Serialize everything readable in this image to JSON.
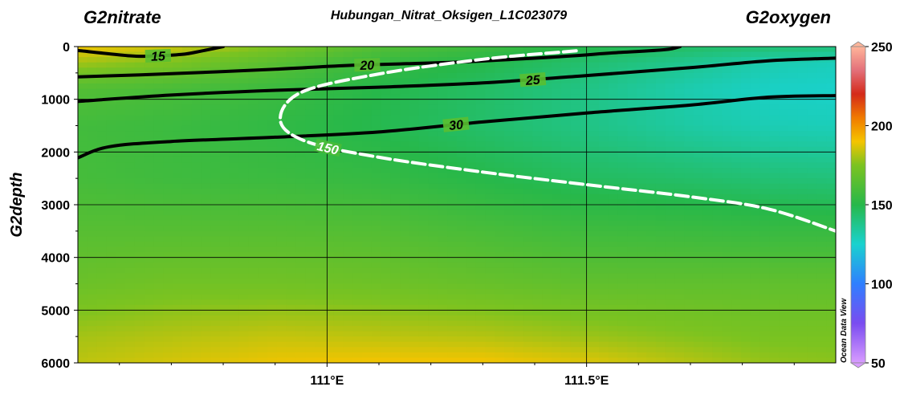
{
  "chart_data": {
    "type": "heatmap",
    "title": "Hubungan_Nitrat_Oksigen_L1C023079",
    "left_label": "G2nitrate",
    "right_label": "G2oxygen",
    "xlabel": "",
    "ylabel": "G2depth",
    "xlim": [
      110.52,
      111.98
    ],
    "ylim": [
      6000,
      0
    ],
    "x_ticks": [
      {
        "value": 111.0,
        "label": "111°E"
      },
      {
        "value": 111.5,
        "label": "111.5°E"
      }
    ],
    "y_ticks": [
      {
        "value": 0,
        "label": "0"
      },
      {
        "value": 1000,
        "label": "1000"
      },
      {
        "value": 2000,
        "label": "2000"
      },
      {
        "value": 3000,
        "label": "3000"
      },
      {
        "value": 4000,
        "label": "4000"
      },
      {
        "value": 5000,
        "label": "5000"
      },
      {
        "value": 6000,
        "label": "6000"
      }
    ],
    "grid": true,
    "colorbar": {
      "variable": "G2oxygen",
      "range": [
        50,
        250
      ],
      "ticks": [
        {
          "value": 250,
          "label": "250"
        },
        {
          "value": 200,
          "label": "200"
        },
        {
          "value": 150,
          "label": "150"
        },
        {
          "value": 100,
          "label": "100"
        },
        {
          "value": 50,
          "label": "50"
        }
      ],
      "stops": [
        {
          "value": 50,
          "color": "#d89cff"
        },
        {
          "value": 75,
          "color": "#7a4cf0"
        },
        {
          "value": 100,
          "color": "#2f7fff"
        },
        {
          "value": 125,
          "color": "#19d2cf"
        },
        {
          "value": 150,
          "color": "#27b84a"
        },
        {
          "value": 175,
          "color": "#7cc320"
        },
        {
          "value": 190,
          "color": "#f5c400"
        },
        {
          "value": 205,
          "color": "#f07a00"
        },
        {
          "value": 220,
          "color": "#d42a1a"
        },
        {
          "value": 235,
          "color": "#e3707a"
        },
        {
          "value": 250,
          "color": "#ffb59a"
        }
      ]
    },
    "oxygen_field": {
      "x": [
        110.52,
        110.7,
        110.9,
        111.1,
        111.3,
        111.5,
        111.7,
        111.85,
        111.98
      ],
      "depth": [
        0,
        300,
        800,
        1500,
        2500,
        3500,
        4500,
        5500,
        6000
      ],
      "values": [
        [
          190,
          185,
          175,
          163,
          157,
          150,
          145,
          143,
          141
        ],
        [
          180,
          175,
          165,
          155,
          150,
          143,
          137,
          131,
          129
        ],
        [
          163,
          160,
          156,
          150,
          145,
          139,
          131,
          127,
          126
        ],
        [
          158,
          156,
          153,
          149,
          144,
          139,
          133,
          130,
          129
        ],
        [
          159,
          157,
          156,
          154,
          150,
          146,
          144,
          142,
          141
        ],
        [
          164,
          164,
          164,
          163,
          160,
          157,
          156,
          155,
          155
        ],
        [
          170,
          172,
          172,
          171,
          169,
          167,
          167,
          167,
          167
        ],
        [
          180,
          182,
          184,
          183,
          182,
          179,
          176,
          174,
          174
        ],
        [
          183,
          186,
          189,
          190,
          190,
          187,
          182,
          178,
          177
        ]
      ]
    },
    "nitrate_contours": [
      {
        "label": "15",
        "points": [
          [
            110.52,
            75
          ],
          [
            110.62,
            175
          ],
          [
            110.66,
            180
          ],
          [
            110.72,
            150
          ],
          [
            110.76,
            80
          ],
          [
            110.8,
            0
          ]
        ]
      },
      {
        "label": "20",
        "points": [
          [
            110.52,
            575
          ],
          [
            110.7,
            515
          ],
          [
            110.9,
            430
          ],
          [
            111.05,
            355
          ],
          [
            111.25,
            295
          ],
          [
            111.45,
            190
          ],
          [
            111.55,
            120
          ],
          [
            111.65,
            60
          ],
          [
            111.68,
            0
          ]
        ]
      },
      {
        "label": "25",
        "points": [
          [
            110.52,
            1040
          ],
          [
            110.7,
            920
          ],
          [
            110.9,
            830
          ],
          [
            111.1,
            770
          ],
          [
            111.3,
            690
          ],
          [
            111.5,
            550
          ],
          [
            111.7,
            400
          ],
          [
            111.85,
            270
          ],
          [
            111.98,
            220
          ]
        ]
      },
      {
        "label": "30",
        "points": [
          [
            110.52,
            2110
          ],
          [
            110.58,
            1900
          ],
          [
            110.7,
            1800
          ],
          [
            110.9,
            1720
          ],
          [
            111.1,
            1620
          ],
          [
            111.3,
            1430
          ],
          [
            111.5,
            1260
          ],
          [
            111.7,
            1110
          ],
          [
            111.85,
            960
          ],
          [
            111.98,
            930
          ]
        ]
      }
    ],
    "oxygen_contours": [
      {
        "label": "150",
        "points": [
          [
            111.48,
            80
          ],
          [
            111.3,
            240
          ],
          [
            111.1,
            520
          ],
          [
            110.95,
            870
          ],
          [
            110.91,
            1400
          ],
          [
            110.96,
            1800
          ],
          [
            111.1,
            2100
          ],
          [
            111.3,
            2380
          ],
          [
            111.5,
            2620
          ],
          [
            111.7,
            2850
          ],
          [
            111.85,
            3080
          ],
          [
            111.98,
            3500
          ]
        ]
      }
    ],
    "watermark": "Ocean Data View"
  }
}
